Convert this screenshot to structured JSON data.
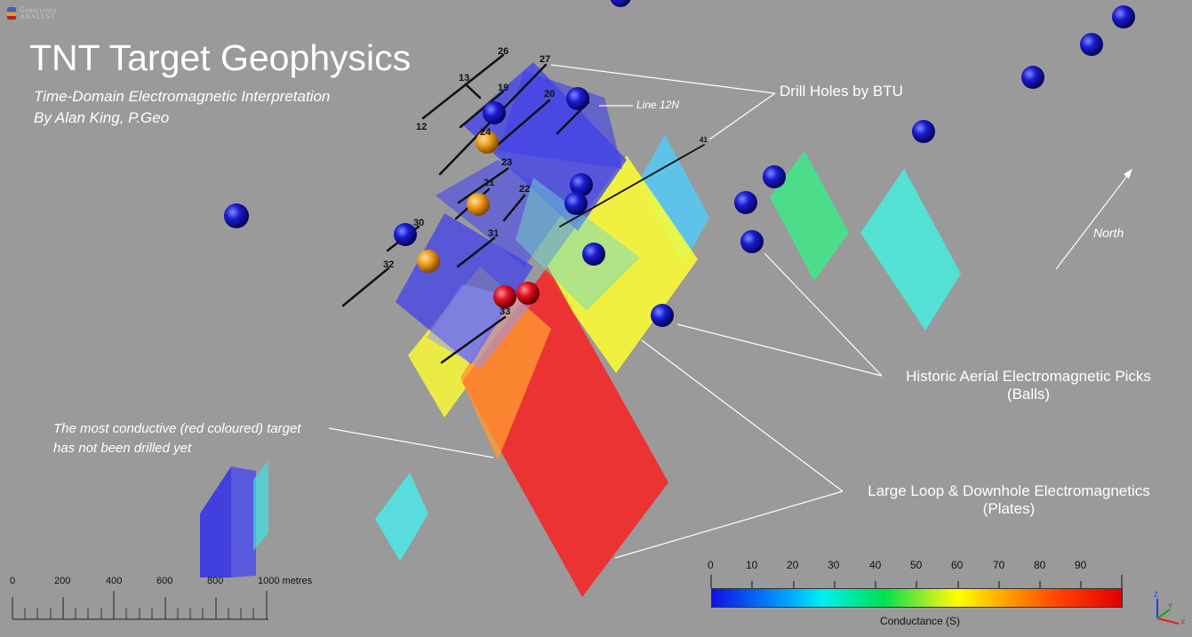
{
  "logo": {
    "line1": "Geoscience",
    "line2": "ANALYST"
  },
  "title": "TNT Target Geophysics",
  "subtitle1": "Time-Domain Electromagnetic Interpretation",
  "subtitle2": "By Alan King, P.Geo",
  "annotations": {
    "drill_holes": "Drill Holes by BTU",
    "aerial_line1": "Historic Aerial Electromagnetic Picks",
    "aerial_line2": "(Balls)",
    "plates_line1": "Large Loop & Downhole Electromagnetics",
    "plates_line2": "(Plates)",
    "note_line1": "The most conductive (red coloured) target",
    "note_line2": "has not been drilled yet",
    "north": "North",
    "line12n": "Line 12N"
  },
  "hole_labels": [
    "26",
    "27",
    "13",
    "19",
    "20",
    "12",
    "24",
    "23",
    "21",
    "22",
    "30",
    "31",
    "32",
    "33",
    "41"
  ],
  "scale_bar": {
    "labels": [
      "0",
      "200",
      "400",
      "600",
      "800",
      "1000 metres"
    ]
  },
  "legend": {
    "ticks": [
      "0",
      "10",
      "20",
      "30",
      "40",
      "50",
      "60",
      "70",
      "80",
      "90"
    ],
    "label": "Conductance (S)",
    "colors": {
      "low": "#1010e0",
      "mid": "#ffff00",
      "high": "#e00000"
    }
  },
  "axes_labels": {
    "z": "Z",
    "y": "Y",
    "x": "X"
  },
  "colors": {
    "background": "#9a9a9a",
    "ball_blue": "#1414c8",
    "ball_orange": "#f0a020",
    "ball_red": "#e01020"
  }
}
